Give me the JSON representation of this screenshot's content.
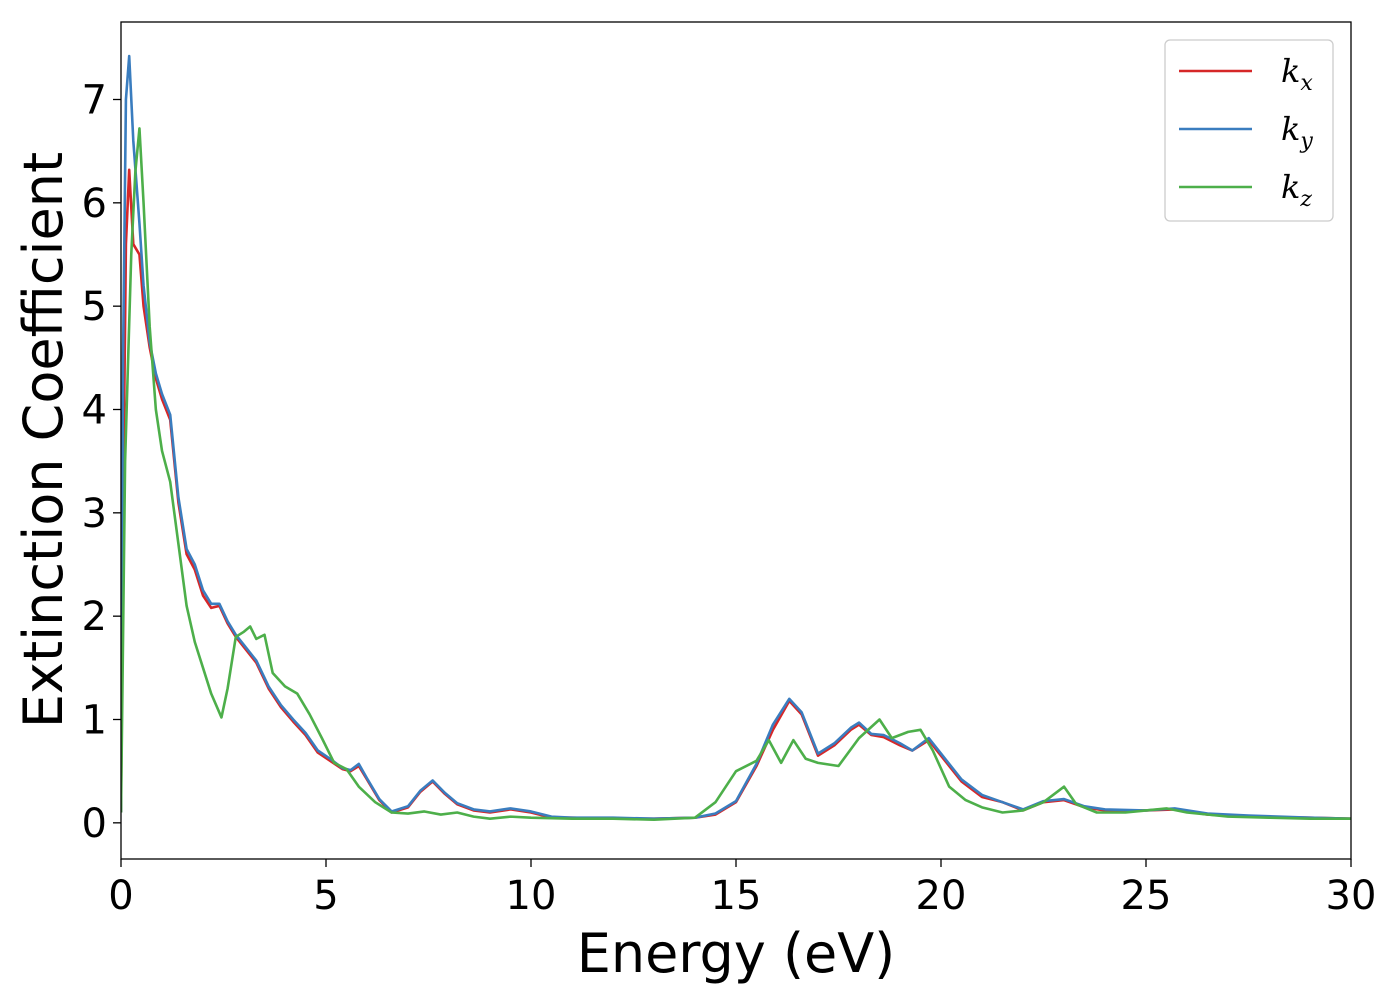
{
  "chart_data": {
    "type": "line",
    "xlabel": "Energy (eV)",
    "ylabel": "Extinction Coefficient",
    "xlim": [
      0,
      30
    ],
    "ylim": [
      -0.35,
      7.75
    ],
    "xticks": [
      0,
      5,
      10,
      15,
      20,
      25,
      30
    ],
    "yticks": [
      0,
      1,
      2,
      3,
      4,
      5,
      6,
      7
    ],
    "grid": false,
    "legend_position": "top-right",
    "series": [
      {
        "name": "k_x",
        "label_base": "k",
        "label_sub": "x",
        "color": "#d62728",
        "points": [
          [
            0,
            0.1
          ],
          [
            0.05,
            3.0
          ],
          [
            0.12,
            5.6
          ],
          [
            0.2,
            6.32
          ],
          [
            0.3,
            5.6
          ],
          [
            0.45,
            5.5
          ],
          [
            0.55,
            5.0
          ],
          [
            0.7,
            4.6
          ],
          [
            0.85,
            4.3
          ],
          [
            1.0,
            4.1
          ],
          [
            1.2,
            3.9
          ],
          [
            1.4,
            3.1
          ],
          [
            1.6,
            2.6
          ],
          [
            1.8,
            2.45
          ],
          [
            2.0,
            2.2
          ],
          [
            2.2,
            2.08
          ],
          [
            2.4,
            2.1
          ],
          [
            2.6,
            1.93
          ],
          [
            2.8,
            1.8
          ],
          [
            3.0,
            1.7
          ],
          [
            3.3,
            1.55
          ],
          [
            3.6,
            1.3
          ],
          [
            3.9,
            1.12
          ],
          [
            4.2,
            0.98
          ],
          [
            4.5,
            0.85
          ],
          [
            4.8,
            0.68
          ],
          [
            5.1,
            0.6
          ],
          [
            5.4,
            0.52
          ],
          [
            5.6,
            0.5
          ],
          [
            5.8,
            0.55
          ],
          [
            6.0,
            0.42
          ],
          [
            6.3,
            0.22
          ],
          [
            6.6,
            0.1
          ],
          [
            7.0,
            0.15
          ],
          [
            7.3,
            0.3
          ],
          [
            7.6,
            0.4
          ],
          [
            7.9,
            0.28
          ],
          [
            8.2,
            0.18
          ],
          [
            8.6,
            0.12
          ],
          [
            9.0,
            0.1
          ],
          [
            9.5,
            0.13
          ],
          [
            10.0,
            0.1
          ],
          [
            10.5,
            0.05
          ],
          [
            11,
            0.05
          ],
          [
            12,
            0.04
          ],
          [
            13,
            0.04
          ],
          [
            14,
            0.05
          ],
          [
            14.5,
            0.08
          ],
          [
            15.0,
            0.2
          ],
          [
            15.5,
            0.55
          ],
          [
            15.9,
            0.9
          ],
          [
            16.3,
            1.18
          ],
          [
            16.6,
            1.05
          ],
          [
            17.0,
            0.65
          ],
          [
            17.4,
            0.75
          ],
          [
            17.8,
            0.9
          ],
          [
            18.0,
            0.95
          ],
          [
            18.3,
            0.85
          ],
          [
            18.6,
            0.83
          ],
          [
            19.0,
            0.75
          ],
          [
            19.3,
            0.7
          ],
          [
            19.7,
            0.8
          ],
          [
            20.0,
            0.65
          ],
          [
            20.5,
            0.4
          ],
          [
            21.0,
            0.25
          ],
          [
            21.5,
            0.2
          ],
          [
            22.0,
            0.12
          ],
          [
            22.5,
            0.2
          ],
          [
            23.0,
            0.22
          ],
          [
            23.5,
            0.15
          ],
          [
            24.0,
            0.12
          ],
          [
            25.0,
            0.12
          ],
          [
            25.7,
            0.13
          ],
          [
            26.5,
            0.08
          ],
          [
            27.5,
            0.06
          ],
          [
            29,
            0.05
          ],
          [
            30,
            0.04
          ]
        ]
      },
      {
        "name": "k_y",
        "label_base": "k",
        "label_sub": "y",
        "color": "#3a7dbf",
        "points": [
          [
            0,
            0.1
          ],
          [
            0.05,
            4.5
          ],
          [
            0.12,
            7.0
          ],
          [
            0.2,
            7.42
          ],
          [
            0.3,
            6.6
          ],
          [
            0.45,
            5.8
          ],
          [
            0.55,
            5.2
          ],
          [
            0.7,
            4.65
          ],
          [
            0.85,
            4.35
          ],
          [
            1.0,
            4.15
          ],
          [
            1.2,
            3.95
          ],
          [
            1.4,
            3.15
          ],
          [
            1.6,
            2.65
          ],
          [
            1.8,
            2.5
          ],
          [
            2.0,
            2.25
          ],
          [
            2.2,
            2.12
          ],
          [
            2.4,
            2.12
          ],
          [
            2.6,
            1.95
          ],
          [
            2.8,
            1.82
          ],
          [
            3.0,
            1.72
          ],
          [
            3.3,
            1.57
          ],
          [
            3.6,
            1.32
          ],
          [
            3.9,
            1.14
          ],
          [
            4.2,
            1.0
          ],
          [
            4.5,
            0.87
          ],
          [
            4.8,
            0.7
          ],
          [
            5.1,
            0.62
          ],
          [
            5.4,
            0.53
          ],
          [
            5.6,
            0.51
          ],
          [
            5.8,
            0.57
          ],
          [
            6.0,
            0.43
          ],
          [
            6.3,
            0.23
          ],
          [
            6.6,
            0.11
          ],
          [
            7.0,
            0.16
          ],
          [
            7.3,
            0.31
          ],
          [
            7.6,
            0.41
          ],
          [
            7.9,
            0.29
          ],
          [
            8.2,
            0.19
          ],
          [
            8.6,
            0.13
          ],
          [
            9.0,
            0.11
          ],
          [
            9.5,
            0.14
          ],
          [
            10.0,
            0.11
          ],
          [
            10.5,
            0.06
          ],
          [
            11,
            0.05
          ],
          [
            12,
            0.05
          ],
          [
            13,
            0.04
          ],
          [
            14,
            0.05
          ],
          [
            14.5,
            0.09
          ],
          [
            15.0,
            0.21
          ],
          [
            15.5,
            0.57
          ],
          [
            15.9,
            0.95
          ],
          [
            16.3,
            1.2
          ],
          [
            16.6,
            1.07
          ],
          [
            17.0,
            0.67
          ],
          [
            17.4,
            0.77
          ],
          [
            17.8,
            0.92
          ],
          [
            18.0,
            0.97
          ],
          [
            18.3,
            0.86
          ],
          [
            18.6,
            0.85
          ],
          [
            19.0,
            0.77
          ],
          [
            19.3,
            0.7
          ],
          [
            19.7,
            0.82
          ],
          [
            20.0,
            0.67
          ],
          [
            20.5,
            0.42
          ],
          [
            21.0,
            0.27
          ],
          [
            21.5,
            0.2
          ],
          [
            22.0,
            0.13
          ],
          [
            22.5,
            0.21
          ],
          [
            23.0,
            0.23
          ],
          [
            23.5,
            0.16
          ],
          [
            24.0,
            0.13
          ],
          [
            25.0,
            0.12
          ],
          [
            25.7,
            0.14
          ],
          [
            26.5,
            0.09
          ],
          [
            27.5,
            0.07
          ],
          [
            29,
            0.05
          ],
          [
            30,
            0.04
          ]
        ]
      },
      {
        "name": "k_z",
        "label_base": "k",
        "label_sub": "z",
        "color": "#4daf4a",
        "points": [
          [
            0,
            0.1
          ],
          [
            0.1,
            3.5
          ],
          [
            0.25,
            5.5
          ],
          [
            0.35,
            6.3
          ],
          [
            0.45,
            6.72
          ],
          [
            0.55,
            6.0
          ],
          [
            0.7,
            4.8
          ],
          [
            0.85,
            4.0
          ],
          [
            1.0,
            3.6
          ],
          [
            1.2,
            3.3
          ],
          [
            1.4,
            2.7
          ],
          [
            1.6,
            2.1
          ],
          [
            1.8,
            1.75
          ],
          [
            2.0,
            1.5
          ],
          [
            2.2,
            1.25
          ],
          [
            2.45,
            1.02
          ],
          [
            2.6,
            1.3
          ],
          [
            2.8,
            1.8
          ],
          [
            3.0,
            1.85
          ],
          [
            3.15,
            1.9
          ],
          [
            3.3,
            1.78
          ],
          [
            3.5,
            1.82
          ],
          [
            3.7,
            1.45
          ],
          [
            4.0,
            1.32
          ],
          [
            4.3,
            1.25
          ],
          [
            4.6,
            1.05
          ],
          [
            4.9,
            0.82
          ],
          [
            5.2,
            0.58
          ],
          [
            5.5,
            0.52
          ],
          [
            5.8,
            0.35
          ],
          [
            6.2,
            0.2
          ],
          [
            6.6,
            0.1
          ],
          [
            7.0,
            0.09
          ],
          [
            7.4,
            0.11
          ],
          [
            7.8,
            0.08
          ],
          [
            8.2,
            0.1
          ],
          [
            8.6,
            0.06
          ],
          [
            9.0,
            0.04
          ],
          [
            9.5,
            0.06
          ],
          [
            10,
            0.05
          ],
          [
            11,
            0.04
          ],
          [
            12,
            0.04
          ],
          [
            13,
            0.03
          ],
          [
            14,
            0.05
          ],
          [
            14.5,
            0.2
          ],
          [
            15.0,
            0.5
          ],
          [
            15.5,
            0.6
          ],
          [
            15.8,
            0.8
          ],
          [
            16.1,
            0.58
          ],
          [
            16.4,
            0.8
          ],
          [
            16.7,
            0.62
          ],
          [
            17.0,
            0.58
          ],
          [
            17.5,
            0.55
          ],
          [
            18.0,
            0.82
          ],
          [
            18.5,
            1.0
          ],
          [
            18.8,
            0.82
          ],
          [
            19.2,
            0.88
          ],
          [
            19.5,
            0.9
          ],
          [
            19.8,
            0.7
          ],
          [
            20.2,
            0.35
          ],
          [
            20.6,
            0.22
          ],
          [
            21.0,
            0.15
          ],
          [
            21.5,
            0.1
          ],
          [
            22.0,
            0.12
          ],
          [
            22.5,
            0.2
          ],
          [
            23.0,
            0.35
          ],
          [
            23.3,
            0.18
          ],
          [
            23.8,
            0.1
          ],
          [
            24.5,
            0.1
          ],
          [
            25.0,
            0.12
          ],
          [
            25.5,
            0.14
          ],
          [
            26.0,
            0.1
          ],
          [
            27,
            0.06
          ],
          [
            28,
            0.05
          ],
          [
            29,
            0.04
          ],
          [
            30,
            0.04
          ]
        ]
      }
    ]
  }
}
